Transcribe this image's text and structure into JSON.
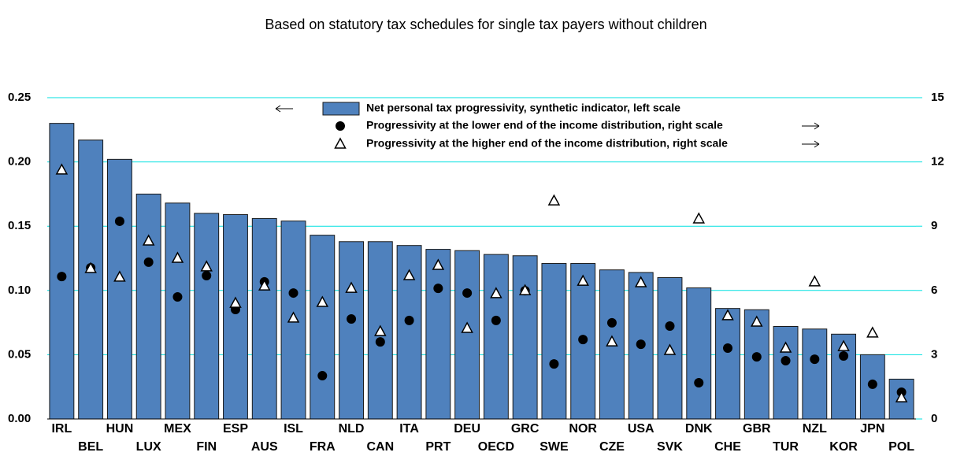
{
  "chart_data": {
    "type": "bar",
    "title": "Based on statutory tax schedules for single tax payers without children",
    "categories": [
      "IRL",
      "BEL",
      "HUN",
      "LUX",
      "MEX",
      "FIN",
      "ESP",
      "AUS",
      "ISL",
      "FRA",
      "NLD",
      "CAN",
      "ITA",
      "PRT",
      "DEU",
      "OECD",
      "GRC",
      "SWE",
      "NOR",
      "CZE",
      "USA",
      "SVK",
      "DNK",
      "CHE",
      "GBR",
      "TUR",
      "NZL",
      "KOR",
      "JPN",
      "POL"
    ],
    "series": [
      {
        "name": "Net personal tax progressivity, synthetic indicator, left scale",
        "type": "bar",
        "color": "#4f81bd",
        "values": [
          0.23,
          0.217,
          0.202,
          0.175,
          0.168,
          0.16,
          0.159,
          0.156,
          0.154,
          0.143,
          0.138,
          0.138,
          0.135,
          0.132,
          0.131,
          0.128,
          0.127,
          0.121,
          0.121,
          0.116,
          0.114,
          0.11,
          0.102,
          0.086,
          0.085,
          0.072,
          0.07,
          0.066,
          0.05,
          0.031
        ]
      },
      {
        "name": "Progressivity at the lower end of the income distribution, right scale",
        "type": "circle",
        "axis": "y2",
        "color": "#000000",
        "values": [
          6.65,
          7.06,
          9.23,
          7.32,
          5.7,
          6.69,
          5.11,
          6.4,
          5.88,
          2.02,
          4.67,
          3.6,
          4.6,
          6.1,
          5.88,
          4.6,
          5.99,
          2.57,
          3.71,
          4.49,
          3.49,
          4.34,
          1.69,
          3.31,
          2.9,
          2.72,
          2.79,
          2.94,
          1.62,
          1.25
        ]
      },
      {
        "name": "Progressivity at the higher end of the income distribution, right scale",
        "type": "triangle",
        "axis": "y2",
        "color": "#ffffff",
        "values": [
          11.62,
          7.02,
          6.62,
          8.31,
          7.5,
          7.1,
          5.4,
          6.21,
          4.71,
          5.44,
          6.1,
          4.08,
          6.69,
          7.17,
          4.23,
          5.85,
          5.99,
          10.18,
          6.43,
          3.6,
          6.36,
          3.2,
          9.34,
          4.82,
          4.52,
          3.31,
          6.4,
          3.38,
          4.01,
          0.99
        ]
      }
    ],
    "ylim": [
      0,
      0.25
    ],
    "yticks": [
      {
        "value": 0,
        "label": "0.00"
      },
      0.05,
      {
        "value": 0.1,
        "label": "0.10"
      },
      0.15,
      {
        "value": 0.2,
        "label": "0.20"
      },
      0.25
    ],
    "y2lim": [
      0,
      15
    ],
    "y2ticks": [
      0,
      3,
      6,
      9,
      12,
      15
    ],
    "grid": true,
    "grid_color": "#00e0e0"
  }
}
